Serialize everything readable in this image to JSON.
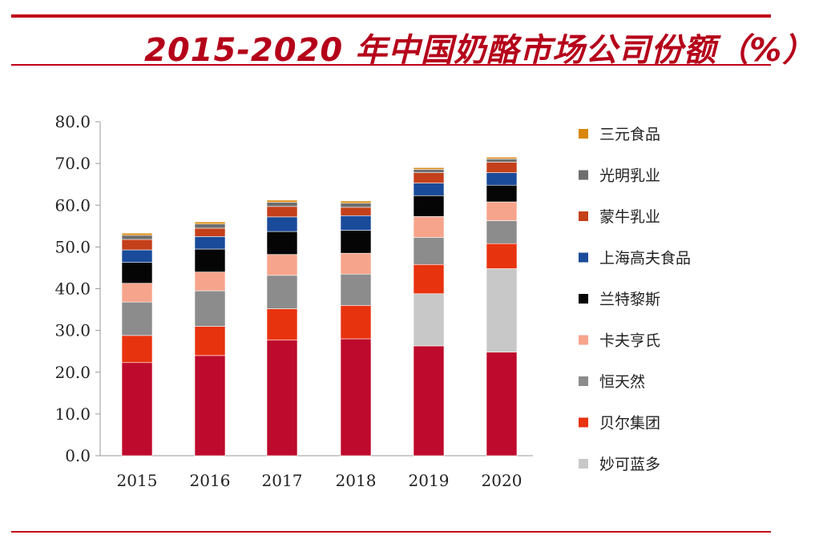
{
  "header": {
    "title": "2015-2020 年中国奶酪市场公司份额（%）"
  },
  "colors": {
    "rule": "#c00018",
    "title": "#b5001a"
  },
  "chart_data": {
    "type": "bar",
    "stacked": true,
    "title": "2015-2020 年中国奶酪市场公司份额（%）",
    "xlabel": "",
    "ylabel": "",
    "categories": [
      "2015",
      "2016",
      "2017",
      "2018",
      "2019",
      "2020"
    ],
    "ylim": [
      0,
      80
    ],
    "yticks": [
      "0.0",
      "10.0",
      "20.0",
      "30.0",
      "40.0",
      "50.0",
      "60.0",
      "70.0",
      "80.0"
    ],
    "grid": false,
    "legend_position": "right",
    "series": [
      {
        "name": "妙可蓝多",
        "color": "#c8c8c8",
        "values": [
          0.0,
          0.0,
          0.0,
          0.0,
          12.5,
          20.0
        ]
      },
      {
        "name": "贝尔集团",
        "color": "#e8330f",
        "values": [
          6.5,
          7.0,
          7.5,
          8.0,
          7.0,
          6.0
        ]
      },
      {
        "name": "恒天然",
        "color": "#8c8c8c",
        "values": [
          8.0,
          8.5,
          8.0,
          7.5,
          6.5,
          5.5
        ]
      },
      {
        "name": "卡夫亨氏",
        "color": "#f7a48c",
        "values": [
          4.5,
          4.5,
          5.0,
          5.0,
          5.0,
          4.5
        ]
      },
      {
        "name": "兰特黎斯",
        "color": "#050505",
        "values": [
          5.0,
          5.5,
          5.5,
          5.5,
          5.0,
          4.0
        ]
      },
      {
        "name": "上海高夫食品",
        "color": "#1a4b9a",
        "values": [
          3.0,
          3.0,
          3.5,
          3.5,
          3.0,
          3.0
        ]
      },
      {
        "name": "蒙牛乳业",
        "color": "#c4401a",
        "values": [
          2.5,
          2.0,
          2.5,
          2.0,
          2.5,
          2.5
        ]
      },
      {
        "name": "光明乳业",
        "color": "#6e6e6e",
        "values": [
          1.0,
          1.0,
          1.0,
          1.0,
          0.8,
          0.8
        ]
      },
      {
        "name": "三元食品",
        "color": "#d9860a",
        "values": [
          0.5,
          0.5,
          0.5,
          0.5,
          0.4,
          0.4
        ]
      }
    ],
    "base_series": {
      "name": "",
      "color": "#be0a2c",
      "values": [
        22.3,
        24.0,
        27.7,
        28.0,
        26.3,
        24.8
      ]
    },
    "legend_order": [
      "三元食品",
      "光明乳业",
      "蒙牛乳业",
      "上海高夫食品",
      "兰特黎斯",
      "卡夫亨氏",
      "恒天然",
      "贝尔集团",
      "妙可蓝多"
    ]
  }
}
